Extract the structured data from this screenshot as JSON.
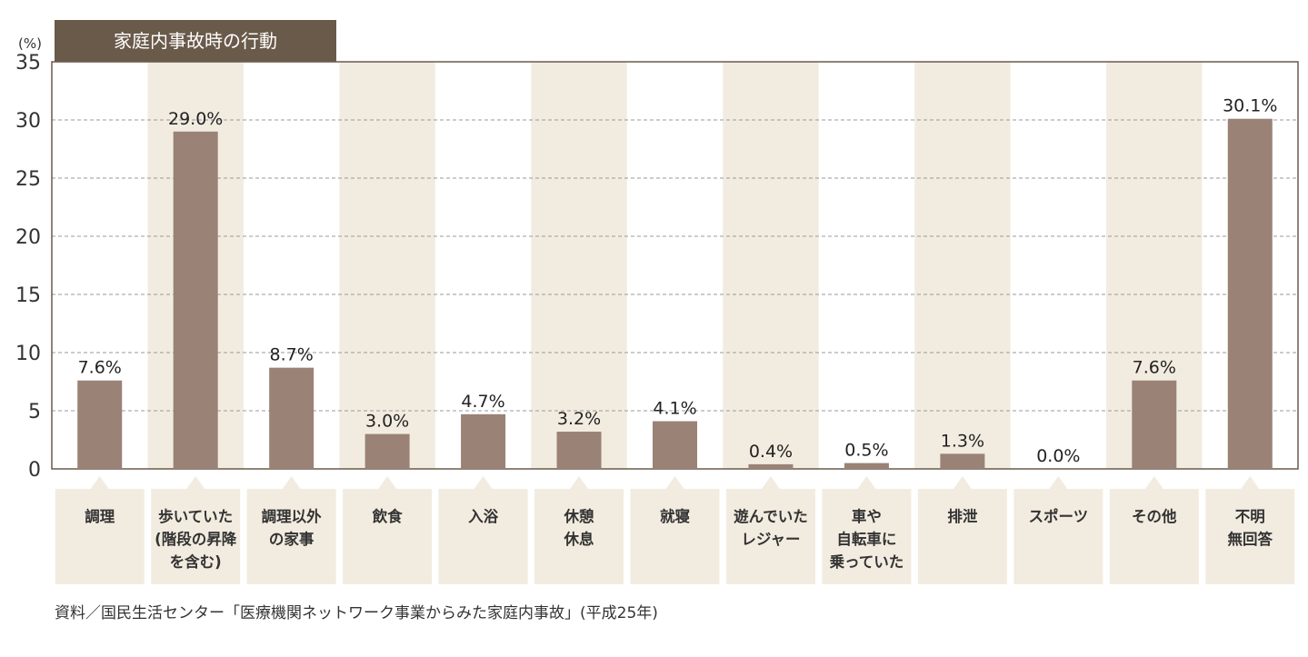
{
  "chart_data": {
    "type": "bar",
    "title": "家庭内事故時の行動",
    "unit_label": "(%)",
    "ylim": [
      0,
      35
    ],
    "yticks": [
      0,
      5,
      10,
      15,
      20,
      25,
      30,
      35
    ],
    "grid": true,
    "categories": [
      [
        "調理"
      ],
      [
        "歩いていた",
        "(階段の昇降",
        "を含む)"
      ],
      [
        "調理以外",
        "の家事"
      ],
      [
        "飲食"
      ],
      [
        "入浴"
      ],
      [
        "休憩",
        "休息"
      ],
      [
        "就寝"
      ],
      [
        "遊んでいた",
        "レジャー"
      ],
      [
        "車や",
        "自転車に",
        "乗っていた"
      ],
      [
        "排泄"
      ],
      [
        "スポーツ"
      ],
      [
        "その他"
      ],
      [
        "不明",
        "無回答"
      ]
    ],
    "values": [
      7.6,
      29.0,
      8.7,
      3.0,
      4.7,
      3.2,
      4.1,
      0.4,
      0.5,
      1.3,
      0.0,
      7.6,
      30.1
    ],
    "value_labels": [
      "7.6%",
      "29.0%",
      "8.7%",
      "3.0%",
      "4.7%",
      "3.2%",
      "4.1%",
      "0.4%",
      "0.5%",
      "1.3%",
      "0.0%",
      "7.6%",
      "30.1%"
    ],
    "colors": {
      "bar": "#9a8277",
      "stripe": "#f2ece0",
      "title_bg": "#6a5a4a",
      "title_text": "#ffffff",
      "grid": "#999999",
      "axis": "#6a5a4a",
      "label_box": "#f2ece0"
    }
  },
  "source": "資料／国民生活センター「医療機関ネットワーク事業からみた家庭内事故」(平成25年)"
}
